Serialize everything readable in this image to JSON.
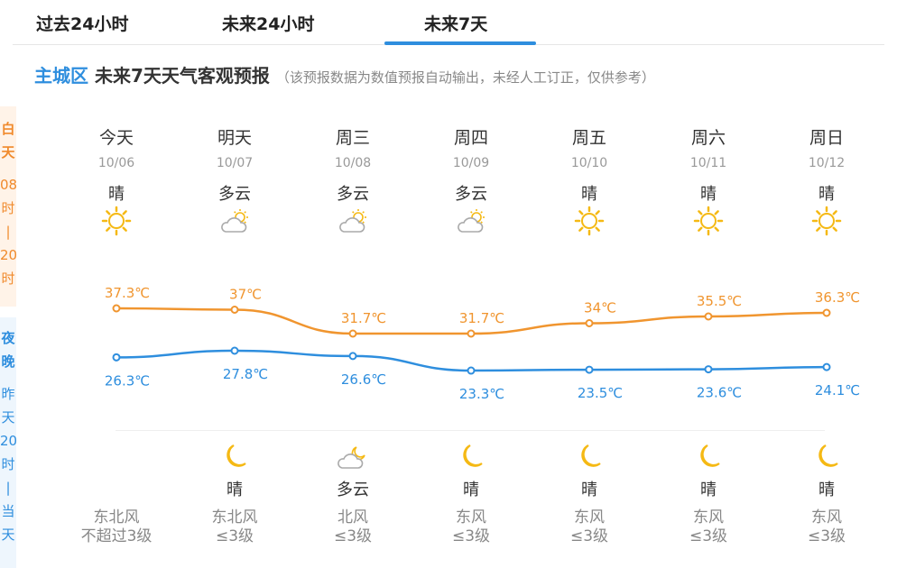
{
  "tabs": [
    {
      "label": "过去24小时"
    },
    {
      "label": "未来24小时"
    },
    {
      "label": "未来7天",
      "active": true
    }
  ],
  "header": {
    "area": "主城区",
    "title": "未来7天天气客观预报",
    "note": "（该预报数据为数值预报自动输出，未经人工订正，仅供参考）"
  },
  "side": {
    "day": {
      "title": [
        "白",
        "天"
      ],
      "range": [
        "08",
        "时",
        "|",
        "20",
        "时"
      ]
    },
    "night": {
      "title": [
        "夜",
        "晚"
      ],
      "range": [
        "昨",
        "天",
        "20",
        "时",
        "|",
        "当",
        "天"
      ]
    }
  },
  "colors": {
    "high": "#f0952f",
    "low": "#2e8ede",
    "sun": "#f5b914",
    "cloud": "#aaaaaa"
  },
  "days": [
    {
      "week": "今天",
      "date": "10/06",
      "day_weather": "晴",
      "day_icon": "sun-icon",
      "high": "37.3℃",
      "low": "26.3℃",
      "night_weather": "",
      "night_icon": "",
      "wind_dir": "东北风",
      "wind_level": "不超过3级"
    },
    {
      "week": "明天",
      "date": "10/07",
      "day_weather": "多云",
      "day_icon": "cloudy-icon",
      "high": "37℃",
      "low": "27.8℃",
      "night_weather": "晴",
      "night_icon": "moon-icon",
      "wind_dir": "东北风",
      "wind_level": "≤3级"
    },
    {
      "week": "周三",
      "date": "10/08",
      "day_weather": "多云",
      "day_icon": "cloudy-icon",
      "high": "31.7℃",
      "low": "26.6℃",
      "night_weather": "多云",
      "night_icon": "cloudy-night-icon",
      "wind_dir": "北风",
      "wind_level": "≤3级"
    },
    {
      "week": "周四",
      "date": "10/09",
      "day_weather": "多云",
      "day_icon": "cloudy-icon",
      "high": "31.7℃",
      "low": "23.3℃",
      "night_weather": "晴",
      "night_icon": "moon-icon",
      "wind_dir": "东风",
      "wind_level": "≤3级"
    },
    {
      "week": "周五",
      "date": "10/10",
      "day_weather": "晴",
      "day_icon": "sun-icon",
      "high": "34℃",
      "low": "23.5℃",
      "night_weather": "晴",
      "night_icon": "moon-icon",
      "wind_dir": "东风",
      "wind_level": "≤3级"
    },
    {
      "week": "周六",
      "date": "10/11",
      "day_weather": "晴",
      "day_icon": "sun-icon",
      "high": "35.5℃",
      "low": "23.6℃",
      "night_weather": "晴",
      "night_icon": "moon-icon",
      "wind_dir": "东风",
      "wind_level": "≤3级"
    },
    {
      "week": "周日",
      "date": "10/12",
      "day_weather": "晴",
      "day_icon": "sun-icon",
      "high": "36.3℃",
      "low": "24.1℃",
      "night_weather": "晴",
      "night_icon": "moon-icon",
      "wind_dir": "东风",
      "wind_level": "≤3级"
    }
  ],
  "chart_data": {
    "type": "line",
    "categories": [
      "10/06",
      "10/07",
      "10/08",
      "10/09",
      "10/10",
      "10/11",
      "10/12"
    ],
    "series": [
      {
        "values": [
          37.3,
          37,
          31.7,
          31.7,
          34,
          35.5,
          36.3
        ]
      },
      {
        "values": [
          26.3,
          27.8,
          26.6,
          23.3,
          23.5,
          23.6,
          24.1
        ]
      }
    ]
  }
}
